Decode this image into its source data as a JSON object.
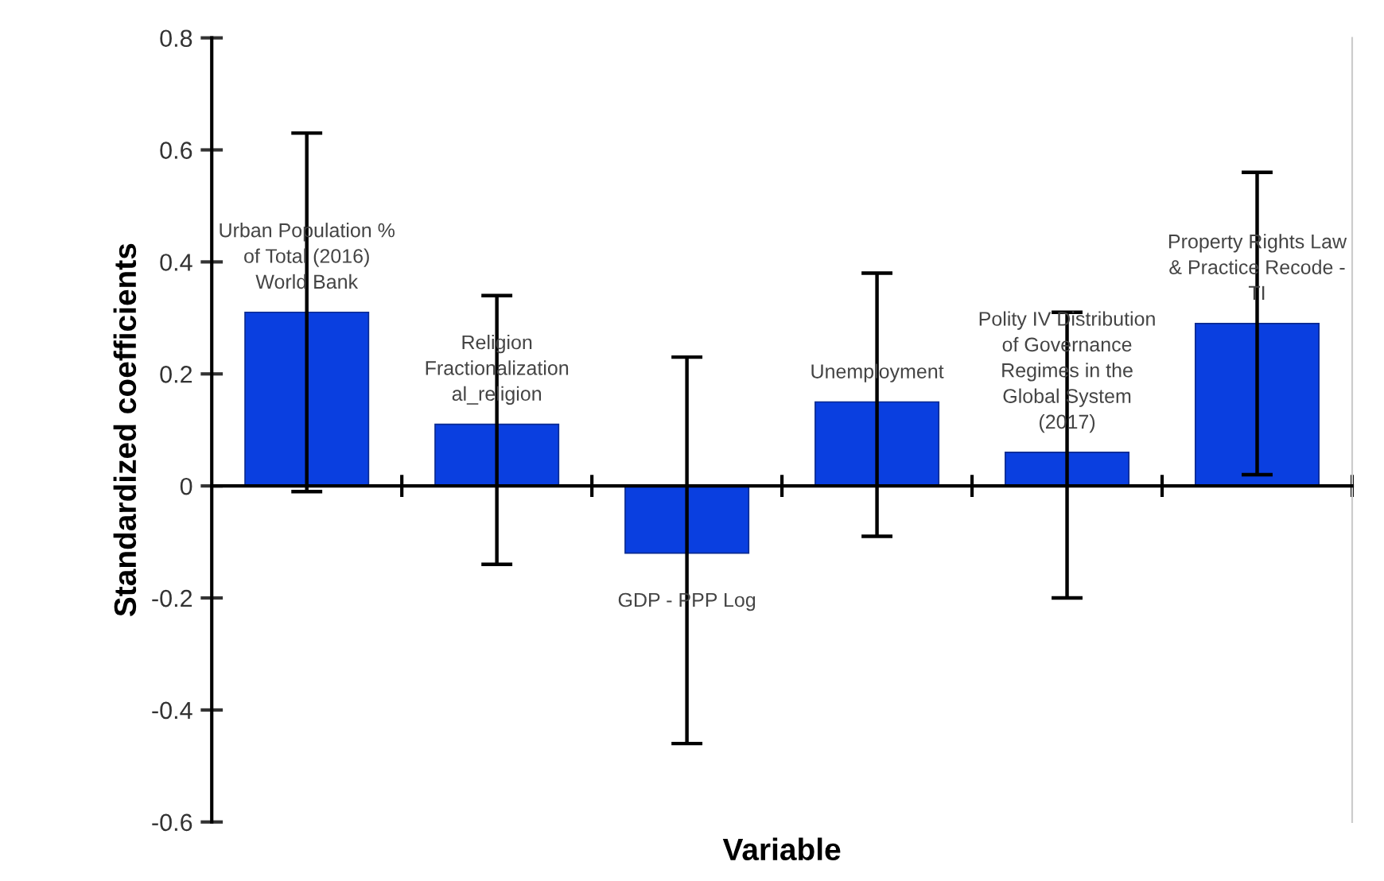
{
  "chart_data": {
    "type": "bar",
    "xlabel": "Variable",
    "ylabel": "Standardized coefficients",
    "categories": [
      "Urban Population %\nof Total (2016)\nWorld Bank",
      "Religion\nFractionalization\nal_religion",
      "GDP - PPP Log",
      "Unemployment",
      "Polity IV Distribution\nof Governance\nRegimes in the\nGlobal System\n(2017)",
      "Property Rights Law\n& Practice Recode -\nTI"
    ],
    "values": [
      0.31,
      0.11,
      -0.12,
      0.15,
      0.06,
      0.29
    ],
    "errors": [
      [
        -0.01,
        0.63
      ],
      [
        -0.14,
        0.34
      ],
      [
        -0.46,
        0.23
      ],
      [
        -0.09,
        0.38
      ],
      [
        -0.2,
        0.31
      ],
      [
        0.02,
        0.56
      ]
    ],
    "color": "#0a3fe0",
    "ylim": [
      -0.6,
      0.8
    ],
    "yticks": [
      -0.6,
      -0.4,
      -0.2,
      0,
      0.2,
      0.4,
      0.6,
      0.8
    ]
  }
}
